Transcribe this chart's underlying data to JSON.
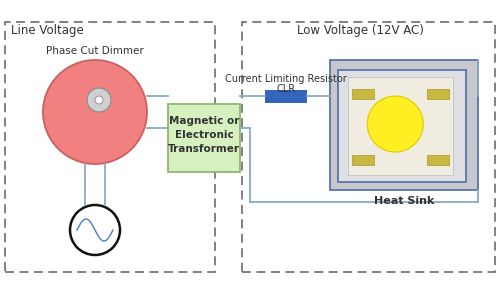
{
  "title_line_voltage": "Line Voltage",
  "title_low_voltage": "Low Voltage (12V AC)",
  "label_phase_cut": "Phase Cut Dimmer",
  "label_transformer": "Magnetic or\nElectronic\nTransformer",
  "label_clr_title": "Current Limiting Resistor",
  "label_clr": "CLR",
  "label_heat_sink": "Heat Sink",
  "bg_color": "#ffffff",
  "dashed_box_color": "#777777",
  "transformer_fill": "#d6f0c0",
  "transformer_edge": "#90b870",
  "dimmer_circle_fill": "#f28080",
  "dimmer_circle_edge": "#c86060",
  "knob_fill": "#d0d0d0",
  "knob_edge": "#909090",
  "ac_circle_fill": "#ffffff",
  "ac_circle_edge": "#111111",
  "ac_wave_color": "#5588cc",
  "wire_color": "#88aacc",
  "resistor_fill": "#3366bb",
  "heatsink_outer_fill": "#c8c8cc",
  "heatsink_outer_edge": "#5577aa",
  "heatsink_inner_fill": "#e0e0e4",
  "heatsink_inner_edge": "#5577aa",
  "led_yellow": "#ffee22",
  "star_color": "#c8b840",
  "star_bg": "#e8e0d0",
  "text_color": "#333333"
}
